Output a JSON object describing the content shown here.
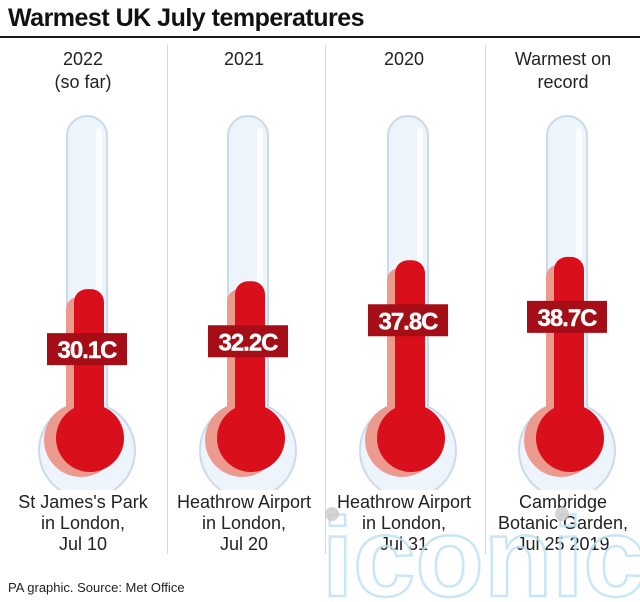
{
  "title": "Warmest UK July temperatures",
  "footer": "PA graphic. Source: Met Office",
  "watermark": "iconic",
  "colors": {
    "red": "#d90f1b",
    "pink": "#ec9a8e",
    "tube_fill": "#eef4fb",
    "tube_stroke": "#c8dbee",
    "label_bg": "#a50e17"
  },
  "chart_data": {
    "type": "bar",
    "title": "Warmest UK July temperatures",
    "unit": "C",
    "ylim": [
      0,
      42
    ],
    "categories": [
      "2022 (so far)",
      "2021",
      "2020",
      "Warmest on record"
    ],
    "values": [
      30.1,
      32.2,
      37.8,
      38.7
    ],
    "items": [
      {
        "year_lines": [
          "2022",
          "(so far)"
        ],
        "value": 30.1,
        "value_label": "30.1C",
        "location_lines": [
          "St James's Park",
          "in London,",
          "Jul 10"
        ]
      },
      {
        "year_lines": [
          "2021"
        ],
        "value": 32.2,
        "value_label": "32.2C",
        "location_lines": [
          "Heathrow Airport",
          "in London,",
          "Jul 20"
        ]
      },
      {
        "year_lines": [
          "2020"
        ],
        "value": 37.8,
        "value_label": "37.8C",
        "location_lines": [
          "Heathrow Airport",
          "in London,",
          "Jul 31"
        ]
      },
      {
        "year_lines": [
          "Warmest on",
          "record"
        ],
        "value": 38.7,
        "value_label": "38.7C",
        "location_lines": [
          "Cambridge",
          "Botanic Garden,",
          "Jul 25 2019"
        ]
      }
    ]
  }
}
